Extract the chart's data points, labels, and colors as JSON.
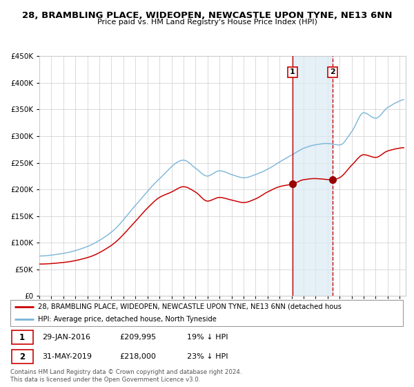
{
  "title": "28, BRAMBLING PLACE, WIDEOPEN, NEWCASTLE UPON TYNE, NE13 6NN",
  "subtitle": "Price paid vs. HM Land Registry's House Price Index (HPI)",
  "ylim": [
    0,
    450000
  ],
  "yticks": [
    0,
    50000,
    100000,
    150000,
    200000,
    250000,
    300000,
    350000,
    400000,
    450000
  ],
  "ytick_labels": [
    "£0",
    "£50K",
    "£100K",
    "£150K",
    "£200K",
    "£250K",
    "£300K",
    "£350K",
    "£400K",
    "£450K"
  ],
  "hpi_color": "#7ab4d8",
  "price_color": "#cc0000",
  "point_color": "#990000",
  "shade_color": "#daeaf5",
  "legend_label_red": "28, BRAMBLING PLACE, WIDEOPEN, NEWCASTLE UPON TYNE, NE13 6NN (detached hous",
  "legend_label_blue": "HPI: Average price, detached house, North Tyneside",
  "annotation1_label": "1",
  "annotation1_date": "29-JAN-2016",
  "annotation1_price": "£209,995",
  "annotation1_note": "19% ↓ HPI",
  "annotation2_label": "2",
  "annotation2_date": "31-MAY-2019",
  "annotation2_price": "£218,000",
  "annotation2_note": "23% ↓ HPI",
  "footnote": "Contains HM Land Registry data © Crown copyright and database right 2024.\nThis data is licensed under the Open Government Licence v3.0.",
  "grid_color": "#cccccc",
  "point1_x": 2016.08,
  "point1_y": 209995,
  "point2_x": 2019.42,
  "point2_y": 218000,
  "xmin": 1995.0,
  "xmax": 2025.5,
  "title_fontsize": 9.5,
  "subtitle_fontsize": 8.0
}
